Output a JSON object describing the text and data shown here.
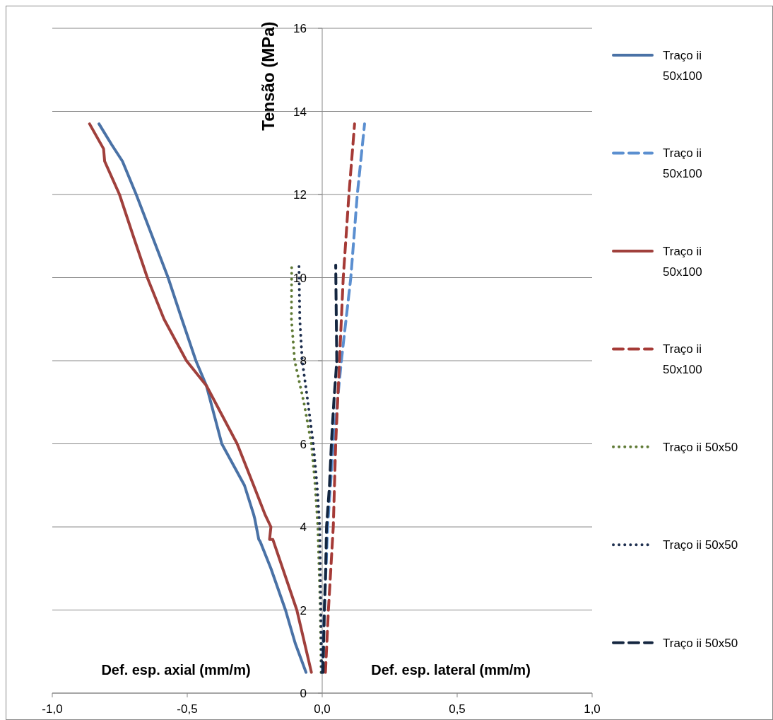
{
  "chart_data": {
    "type": "line",
    "ylabel": "Tensão (MPa)",
    "annotations": [
      "Def. esp. axial (mm/m)",
      "Def. esp. lateral (mm/m)"
    ],
    "xlim": [
      -1,
      1
    ],
    "xticks": [
      {
        "value": -1,
        "label": "-1,0"
      },
      {
        "value": -0.5,
        "label": "-0,5"
      },
      {
        "value": 0,
        "label": "0,0"
      },
      {
        "value": 0.5,
        "label": "0,5"
      },
      {
        "value": 1,
        "label": "1,0"
      }
    ],
    "ylim": [
      0,
      16
    ],
    "yticks": [
      0,
      2,
      4,
      6,
      8,
      10,
      12,
      14,
      16
    ],
    "grid": "y",
    "legend": "right",
    "marker": "none",
    "series": [
      {
        "name": "Traço ii 50x100",
        "color": "#4a72a6",
        "line_style": "solid",
        "x": [
          -0.06,
          -0.1,
          -0.136,
          -0.19,
          -0.23,
          -0.235,
          -0.25,
          -0.254,
          -0.288,
          -0.372,
          -0.429,
          -0.468,
          -0.52,
          -0.571,
          -0.63,
          -0.689,
          -0.74,
          -0.78,
          -0.827
        ],
        "values": [
          0.5,
          1.2,
          2,
          3,
          3.65,
          3.7,
          4.2,
          4.3,
          5,
          6,
          7.4,
          8,
          9,
          10,
          11,
          12,
          12.8,
          13.2,
          13.7
        ]
      },
      {
        "name": "Traço ii 50x100",
        "color": "#5b8fd0",
        "line_style": "dashed",
        "x": [
          0,
          0.008,
          0.02,
          0.041,
          0.071,
          0.106,
          0.13,
          0.157
        ],
        "values": [
          0.5,
          2,
          4,
          6,
          8,
          10,
          12,
          13.7
        ]
      },
      {
        "name": "Traço ii 50x100",
        "color": "#a0403c",
        "line_style": "solid",
        "x": [
          -0.04,
          -0.094,
          -0.183,
          -0.195,
          -0.19,
          -0.212,
          -0.254,
          -0.315,
          -0.429,
          -0.503,
          -0.586,
          -0.648,
          -0.7,
          -0.751,
          -0.806,
          -0.81,
          -0.862
        ],
        "values": [
          0.5,
          2,
          3.7,
          3.7,
          4,
          4.3,
          5,
          6,
          7.4,
          8,
          9,
          10,
          11,
          12,
          12.8,
          13.1,
          13.7
        ]
      },
      {
        "name": "Traço ii 50x100",
        "color": "#a53a36",
        "line_style": "dashed",
        "x": [
          0.012,
          0.023,
          0.041,
          0.05,
          0.064,
          0.078,
          0.099,
          0.12
        ],
        "values": [
          0.5,
          2,
          4,
          6,
          8,
          10,
          12,
          13.7
        ]
      },
      {
        "name": "Traço ii 50x50",
        "color": "#5f7a35",
        "line_style": "dotted",
        "x": [
          -0.004,
          -0.007,
          -0.016,
          -0.026,
          -0.04,
          -0.068,
          -0.102,
          -0.114,
          -0.113
        ],
        "values": [
          0.5,
          2,
          4,
          5,
          6,
          7,
          8,
          9,
          10.3
        ]
      },
      {
        "name": "Traço ii 50x50",
        "color": "#1f3050",
        "line_style": "dotted",
        "x": [
          -0.002,
          -0.005,
          -0.009,
          -0.019,
          -0.033,
          -0.053,
          -0.074,
          -0.083,
          -0.086
        ],
        "values": [
          0.5,
          2,
          4,
          5,
          6,
          7,
          8,
          9,
          10.3
        ]
      },
      {
        "name": "Traço ii 50x50",
        "color": "#142640",
        "line_style": "dashed",
        "x": [
          0.003,
          0.008,
          0.013,
          0.016,
          0.027,
          0.034,
          0.043,
          0.054,
          0.05
        ],
        "values": [
          0.5,
          2,
          3,
          4,
          5,
          6,
          7,
          8,
          10.3
        ]
      }
    ]
  }
}
